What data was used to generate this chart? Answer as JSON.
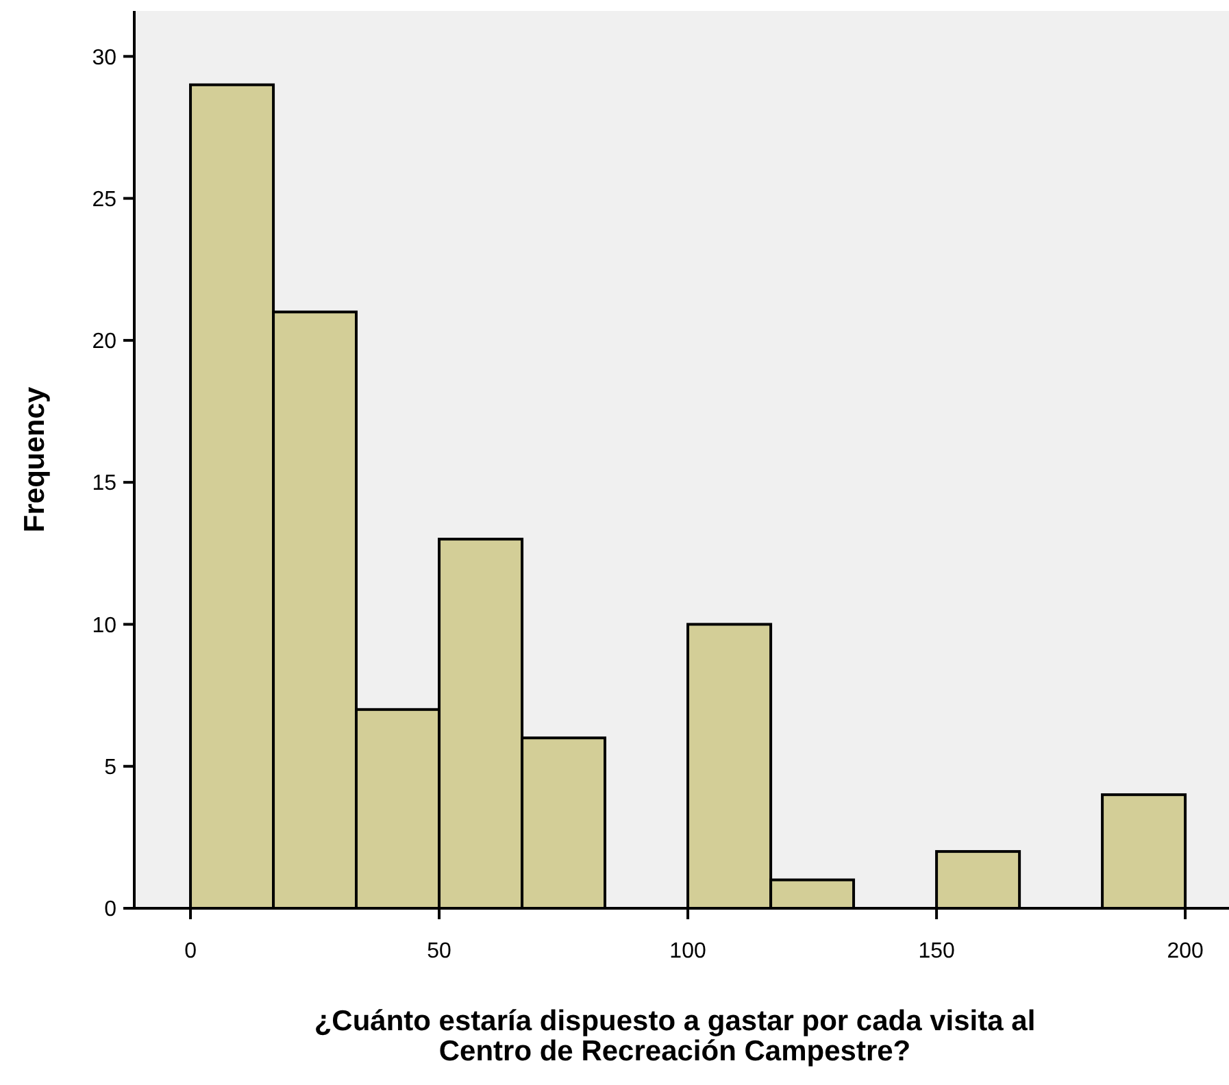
{
  "chart_data": {
    "type": "histogram",
    "xlabel": "¿Cuánto estaría dispuesto a gastar por cada visita al Centro de Recreación Campestre?",
    "ylabel": "Frequency",
    "bins": [
      0,
      16.67,
      33.33,
      50,
      66.67,
      83.33,
      100,
      116.67,
      133.33,
      150,
      166.67,
      183.33,
      200
    ],
    "values": [
      29,
      21,
      7,
      13,
      6,
      0,
      10,
      1,
      0,
      2,
      0,
      4
    ],
    "color": "#d3ce97",
    "xlim": [
      -11.3,
      208.8
    ],
    "xticks": [
      0,
      50,
      100,
      150,
      200
    ],
    "ylim": [
      0,
      31.6
    ],
    "yticks": [
      0,
      5,
      10,
      15,
      20,
      25,
      30
    ],
    "grid": false
  }
}
